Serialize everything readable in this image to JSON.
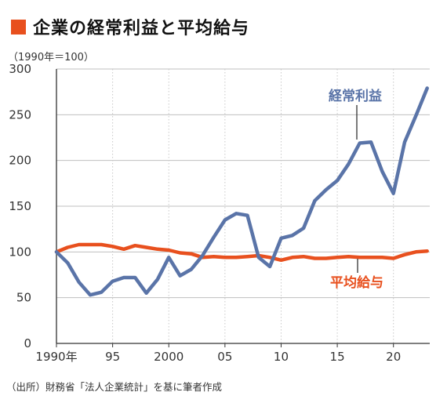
{
  "title": "企業の経常利益と平均給与",
  "unit_note": "（1990年＝100）",
  "source": "（出所）財務省「法人企業統計」を基に筆者作成",
  "colors": {
    "title_square": "#e8501e",
    "profit": "#5a74a8",
    "salary": "#e8501e"
  },
  "chart_data": {
    "type": "line",
    "ylim": [
      0,
      300
    ],
    "yticks": [
      "300",
      "250",
      "200",
      "150",
      "100",
      "50",
      "0"
    ],
    "ytick_values": [
      300,
      250,
      200,
      150,
      100,
      50,
      0
    ],
    "xlim": [
      1990,
      2024
    ],
    "xticks": [
      "1990年",
      "95",
      "2000",
      "05",
      "10",
      "15",
      "20"
    ],
    "xtick_values": [
      1990,
      1995,
      2000,
      2005,
      2010,
      2015,
      2020
    ],
    "grid": true,
    "x": [
      1990,
      1991,
      1992,
      1993,
      1994,
      1995,
      1996,
      1997,
      1998,
      1999,
      2000,
      2001,
      2002,
      2003,
      2004,
      2005,
      2006,
      2007,
      2008,
      2009,
      2010,
      2011,
      2012,
      2013,
      2014,
      2015,
      2016,
      2017,
      2018,
      2019,
      2020,
      2021,
      2022,
      2023
    ],
    "series": [
      {
        "name": "経常利益",
        "values": [
          100,
          88,
          67,
          53,
          56,
          68,
          72,
          72,
          55,
          70,
          94,
          74,
          81,
          96,
          116,
          135,
          142,
          140,
          94,
          84,
          115,
          118,
          126,
          156,
          168,
          178,
          196,
          219,
          220,
          188,
          164,
          220,
          249,
          279
        ]
      },
      {
        "name": "平均給与",
        "values": [
          100,
          105,
          108,
          108,
          108,
          106,
          103,
          107,
          105,
          103,
          102,
          99,
          98,
          94,
          95,
          94,
          94,
          95,
          96,
          94,
          91,
          94,
          95,
          93,
          93,
          94,
          95,
          94,
          94,
          94,
          93,
          97,
          100,
          101
        ]
      }
    ]
  }
}
